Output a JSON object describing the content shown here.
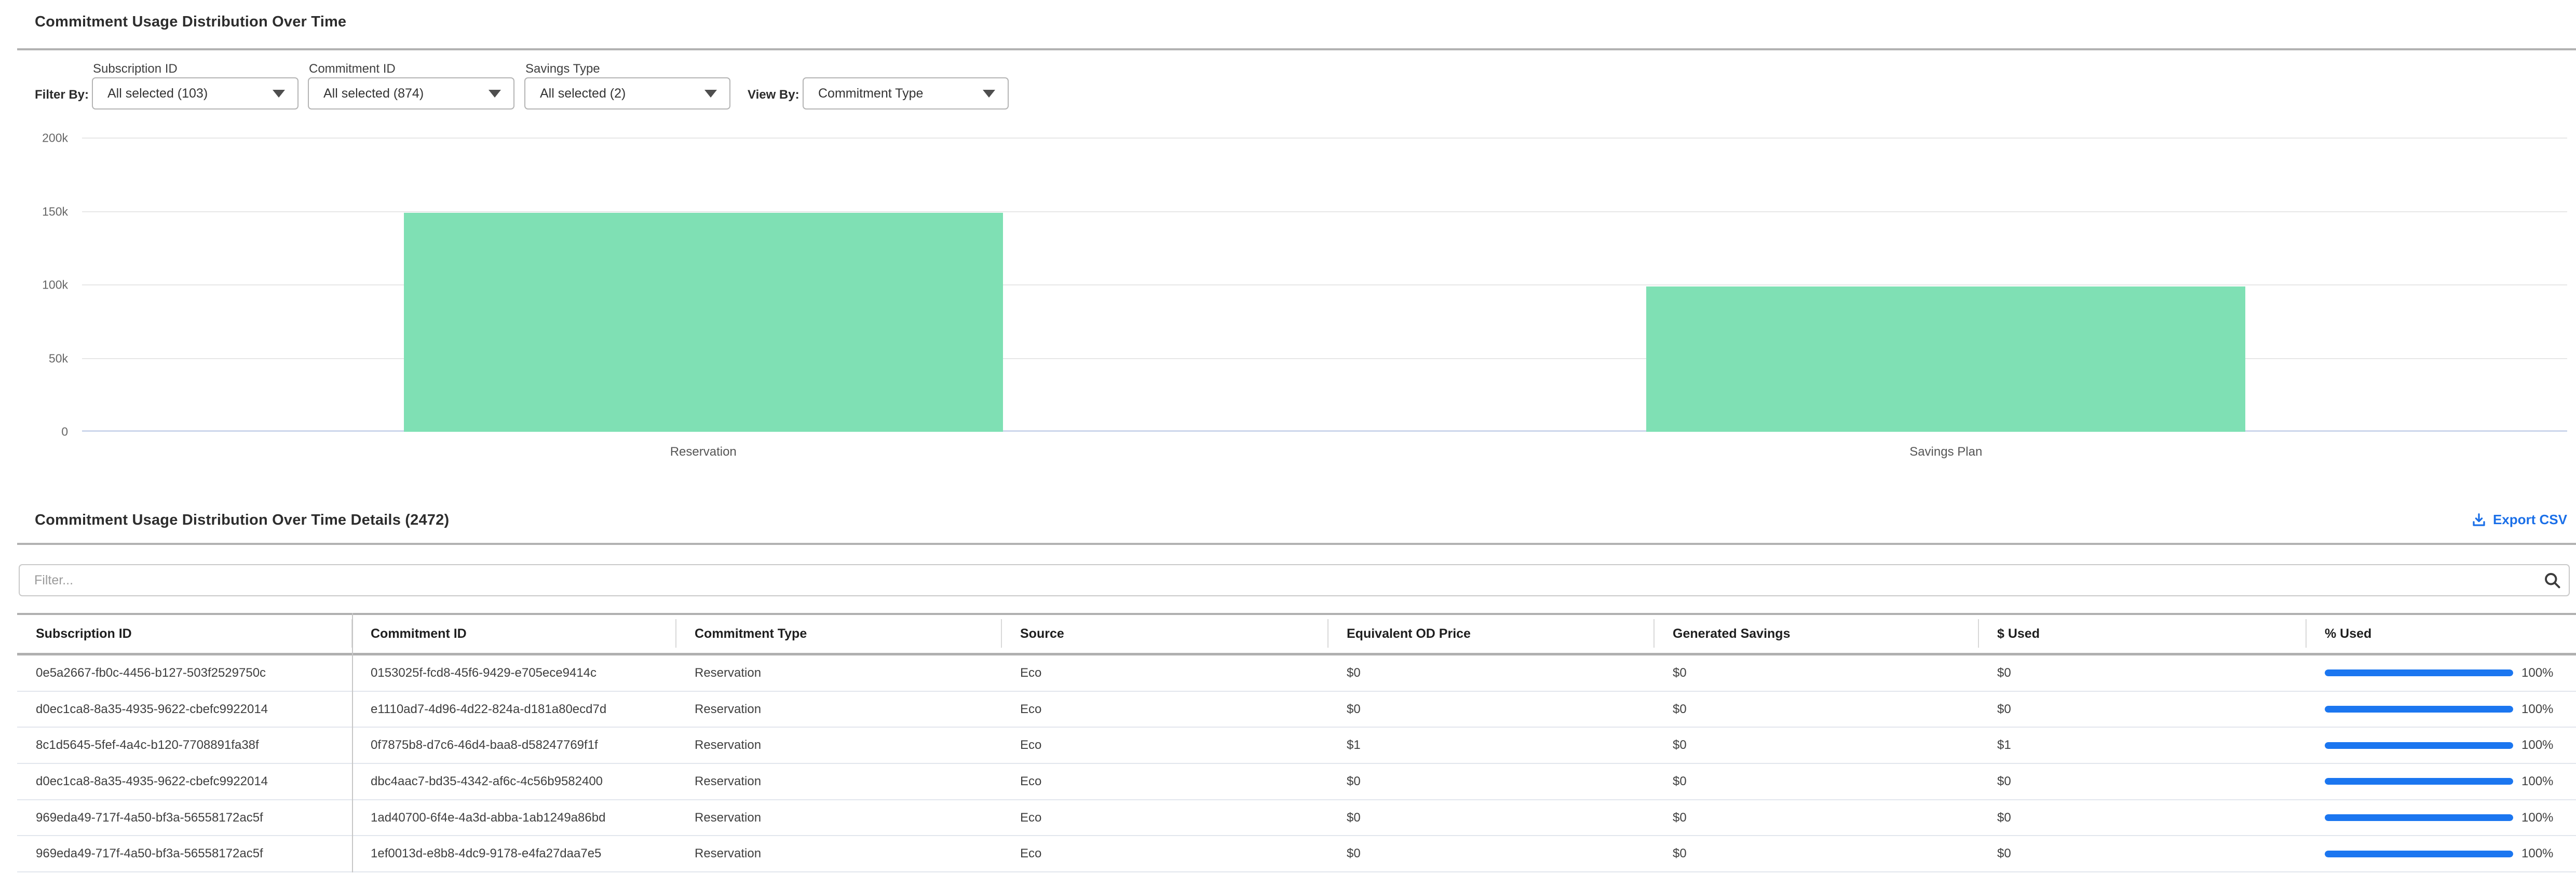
{
  "header": {
    "title": "Commitment Usage Distribution Over Time",
    "filter_by_label": "Filter By:",
    "view_by_label": "View By:",
    "filters": [
      {
        "label": "Subscription ID",
        "value": "All selected (103)"
      },
      {
        "label": "Commitment ID",
        "value": "All selected (874)"
      },
      {
        "label": "Savings Type",
        "value": "All selected (2)"
      }
    ],
    "view_by_value": "Commitment Type"
  },
  "chart_data": {
    "type": "bar",
    "categories": [
      "Reservation",
      "Savings Plan"
    ],
    "values": [
      149000,
      99000
    ],
    "title": "Commitment Usage Distribution Over Time",
    "xlabel": "",
    "ylabel": "",
    "ylim": [
      0,
      200000
    ],
    "yticks": [
      {
        "value": 0,
        "label": "0"
      },
      {
        "value": 50000,
        "label": "50k"
      },
      {
        "value": 100000,
        "label": "100k"
      },
      {
        "value": 150000,
        "label": "150k"
      },
      {
        "value": 200000,
        "label": "200k"
      }
    ],
    "grid": true,
    "legend": false,
    "bar_color": "#7FE0B4"
  },
  "details": {
    "title": "Commitment Usage Distribution Over Time Details (2472)",
    "export_label": "Export CSV",
    "filter_placeholder": "Filter...",
    "columns": [
      "Subscription ID",
      "Commitment ID",
      "Commitment Type",
      "Source",
      "Equivalent OD Price",
      "Generated Savings",
      "$ Used",
      "% Used"
    ],
    "rows": [
      {
        "subscription_id": "0e5a2667-fb0c-4456-b127-503f2529750c",
        "commitment_id": "0153025f-fcd8-45f6-9429-e705ece9414c",
        "commitment_type": "Reservation",
        "source": "Eco",
        "equivalent_od_price": "$0",
        "generated_savings": "$0",
        "used": "$0",
        "used_percent": 100,
        "used_percent_label": "100%"
      },
      {
        "subscription_id": "d0ec1ca8-8a35-4935-9622-cbefc9922014",
        "commitment_id": "e1110ad7-4d96-4d22-824a-d181a80ecd7d",
        "commitment_type": "Reservation",
        "source": "Eco",
        "equivalent_od_price": "$0",
        "generated_savings": "$0",
        "used": "$0",
        "used_percent": 100,
        "used_percent_label": "100%"
      },
      {
        "subscription_id": "8c1d5645-5fef-4a4c-b120-7708891fa38f",
        "commitment_id": "0f7875b8-d7c6-46d4-baa8-d58247769f1f",
        "commitment_type": "Reservation",
        "source": "Eco",
        "equivalent_od_price": "$1",
        "generated_savings": "$0",
        "used": "$1",
        "used_percent": 100,
        "used_percent_label": "100%"
      },
      {
        "subscription_id": "d0ec1ca8-8a35-4935-9622-cbefc9922014",
        "commitment_id": "dbc4aac7-bd35-4342-af6c-4c56b9582400",
        "commitment_type": "Reservation",
        "source": "Eco",
        "equivalent_od_price": "$0",
        "generated_savings": "$0",
        "used": "$0",
        "used_percent": 100,
        "used_percent_label": "100%"
      },
      {
        "subscription_id": "969eda49-717f-4a50-bf3a-56558172ac5f",
        "commitment_id": "1ad40700-6f4e-4a3d-abba-1ab1249a86bd",
        "commitment_type": "Reservation",
        "source": "Eco",
        "equivalent_od_price": "$0",
        "generated_savings": "$0",
        "used": "$0",
        "used_percent": 100,
        "used_percent_label": "100%"
      },
      {
        "subscription_id": "969eda49-717f-4a50-bf3a-56558172ac5f",
        "commitment_id": "1ef0013d-e8b8-4dc9-9178-e4fa27daa7e5",
        "commitment_type": "Reservation",
        "source": "Eco",
        "equivalent_od_price": "$0",
        "generated_savings": "$0",
        "used": "$0",
        "used_percent": 100,
        "used_percent_label": "100%"
      }
    ]
  },
  "icons": {
    "export": "download-tray-arrow",
    "search": "magnifier",
    "dropdown": "triangle-down"
  },
  "colors": {
    "bar_green": "#7FE0B4",
    "progress_blue": "#1B76F0",
    "link_blue": "#1A6FE8",
    "divider_gray": "#B2B2B2",
    "grid_gray": "#E7E7E7",
    "axis_line": "#CCD6EB",
    "row_border": "#E2E6ED"
  }
}
